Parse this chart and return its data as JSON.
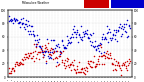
{
  "background_color": "#ffffff",
  "plot_bg_color": "#ffffff",
  "grid_color": "#aaaaaa",
  "humidity_color": "#0000cc",
  "temp_color": "#cc0000",
  "ylim_left": [
    0,
    100
  ],
  "ylim_right": [
    0,
    100
  ],
  "marker_size": 1.2,
  "n_points": 200,
  "left_yticks": [
    0,
    20,
    40,
    60,
    80,
    100
  ],
  "right_yticks": [
    0,
    20,
    40,
    60,
    80,
    100
  ],
  "title_text": "Milwaukee Weather Outdoor Humidity  vs Temperature  Every 5 Minutes"
}
